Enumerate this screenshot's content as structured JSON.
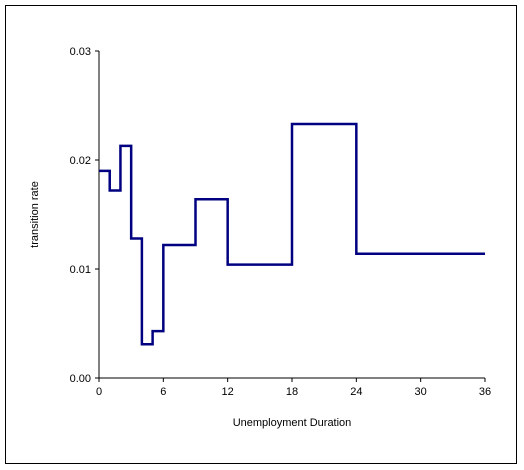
{
  "chart_data": {
    "type": "line",
    "step": true,
    "title": "",
    "xlabel": "Unemployment Duration",
    "ylabel": "transition rate",
    "xlim": [
      0,
      36
    ],
    "ylim": [
      0,
      0.03
    ],
    "x_ticks": [
      0,
      6,
      12,
      18,
      24,
      30,
      36
    ],
    "x_tick_labels": [
      "0",
      "6",
      "12",
      "18",
      "24",
      "30",
      "36"
    ],
    "y_ticks": [
      0,
      0.01,
      0.02,
      0.03
    ],
    "y_tick_labels": [
      "0.00",
      "0.01",
      "0.02",
      "0.03"
    ],
    "grid": false,
    "legend": "none",
    "series": [
      {
        "color": "#000080",
        "segments": [
          {
            "x0": 0,
            "x1": 1,
            "y": 0.019
          },
          {
            "x0": 1,
            "x1": 2,
            "y": 0.0172
          },
          {
            "x0": 2,
            "x1": 3,
            "y": 0.0213
          },
          {
            "x0": 3,
            "x1": 4,
            "y": 0.0128
          },
          {
            "x0": 4,
            "x1": 5,
            "y": 0.0031
          },
          {
            "x0": 5,
            "x1": 6,
            "y": 0.0043
          },
          {
            "x0": 6,
            "x1": 9,
            "y": 0.0122
          },
          {
            "x0": 9,
            "x1": 12,
            "y": 0.0164
          },
          {
            "x0": 12,
            "x1": 18,
            "y": 0.0104
          },
          {
            "x0": 18,
            "x1": 24,
            "y": 0.0233
          },
          {
            "x0": 24,
            "x1": 36,
            "y": 0.0114
          }
        ]
      }
    ]
  }
}
